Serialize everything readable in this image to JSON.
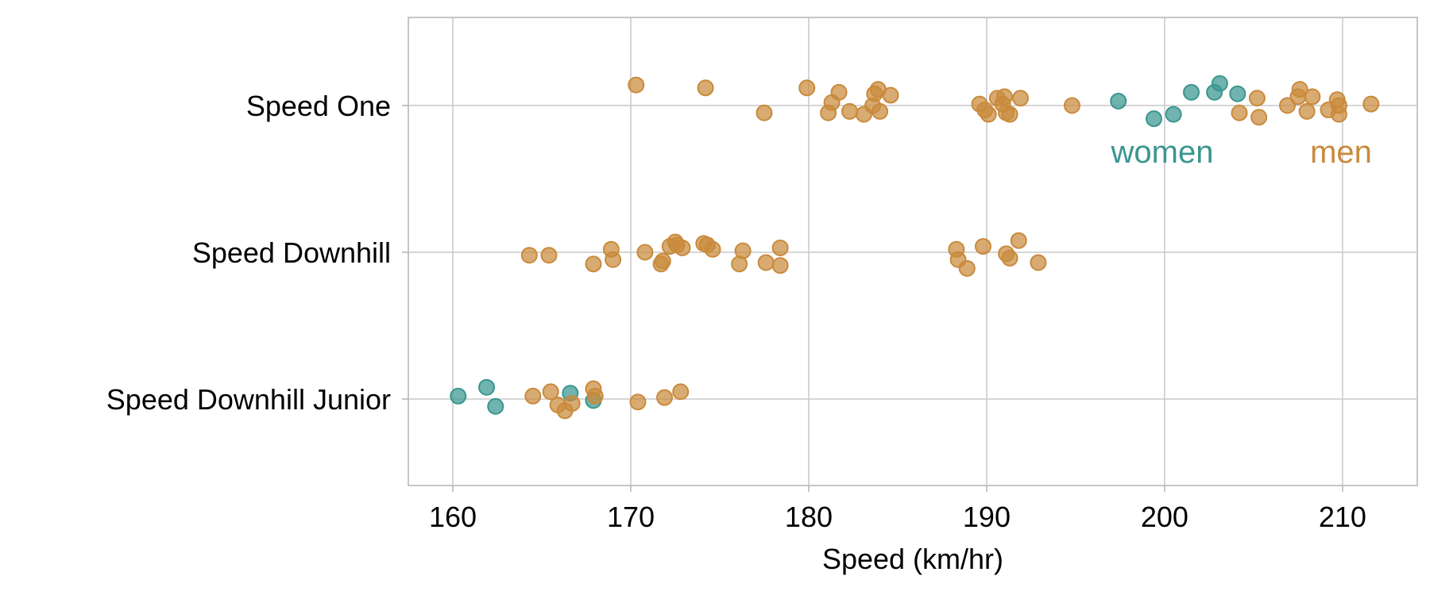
{
  "chart_data": {
    "type": "scatter",
    "xlabel": "Speed (km/hr)",
    "xlim": [
      157.5,
      214.2
    ],
    "xticks": [
      160,
      170,
      180,
      190,
      200,
      210
    ],
    "categories": [
      "Speed One",
      "Speed Downhill",
      "Speed Downhill Junior"
    ],
    "grid": true,
    "legend_placement": "inline-right",
    "series": [
      {
        "name": "women",
        "color": "#3a968f",
        "points": [
          {
            "category": "Speed One",
            "x": 197.4,
            "jitter": 0.03
          },
          {
            "category": "Speed One",
            "x": 199.4,
            "jitter": -0.09
          },
          {
            "category": "Speed One",
            "x": 200.5,
            "jitter": -0.06
          },
          {
            "category": "Speed One",
            "x": 201.5,
            "jitter": 0.09
          },
          {
            "category": "Speed One",
            "x": 202.8,
            "jitter": 0.09
          },
          {
            "category": "Speed One",
            "x": 203.1,
            "jitter": 0.15
          },
          {
            "category": "Speed One",
            "x": 204.1,
            "jitter": 0.08
          },
          {
            "category": "Speed Downhill Junior",
            "x": 160.3,
            "jitter": 0.02
          },
          {
            "category": "Speed Downhill Junior",
            "x": 161.9,
            "jitter": 0.08
          },
          {
            "category": "Speed Downhill Junior",
            "x": 162.4,
            "jitter": -0.05
          },
          {
            "category": "Speed Downhill Junior",
            "x": 166.6,
            "jitter": 0.04
          },
          {
            "category": "Speed Downhill Junior",
            "x": 167.9,
            "jitter": -0.01
          }
        ]
      },
      {
        "name": "men",
        "color": "#c98a3c",
        "points": [
          {
            "category": "Speed One",
            "x": 170.3,
            "jitter": 0.14
          },
          {
            "category": "Speed One",
            "x": 174.2,
            "jitter": 0.12
          },
          {
            "category": "Speed One",
            "x": 177.5,
            "jitter": -0.05
          },
          {
            "category": "Speed One",
            "x": 179.9,
            "jitter": 0.12
          },
          {
            "category": "Speed One",
            "x": 181.1,
            "jitter": -0.05
          },
          {
            "category": "Speed One",
            "x": 181.3,
            "jitter": 0.02
          },
          {
            "category": "Speed One",
            "x": 181.7,
            "jitter": 0.09
          },
          {
            "category": "Speed One",
            "x": 182.3,
            "jitter": -0.04
          },
          {
            "category": "Speed One",
            "x": 183.1,
            "jitter": -0.06
          },
          {
            "category": "Speed One",
            "x": 183.6,
            "jitter": 0.0
          },
          {
            "category": "Speed One",
            "x": 183.7,
            "jitter": 0.08
          },
          {
            "category": "Speed One",
            "x": 183.9,
            "jitter": 0.11
          },
          {
            "category": "Speed One",
            "x": 184.0,
            "jitter": -0.04
          },
          {
            "category": "Speed One",
            "x": 184.6,
            "jitter": 0.07
          },
          {
            "category": "Speed One",
            "x": 189.6,
            "jitter": 0.01
          },
          {
            "category": "Speed One",
            "x": 189.9,
            "jitter": -0.03
          },
          {
            "category": "Speed One",
            "x": 190.1,
            "jitter": -0.06
          },
          {
            "category": "Speed One",
            "x": 190.6,
            "jitter": 0.05
          },
          {
            "category": "Speed One",
            "x": 190.9,
            "jitter": 0.01
          },
          {
            "category": "Speed One",
            "x": 191.0,
            "jitter": 0.06
          },
          {
            "category": "Speed One",
            "x": 191.1,
            "jitter": -0.05
          },
          {
            "category": "Speed One",
            "x": 191.3,
            "jitter": -0.06
          },
          {
            "category": "Speed One",
            "x": 191.9,
            "jitter": 0.05
          },
          {
            "category": "Speed One",
            "x": 194.8,
            "jitter": 0.0
          },
          {
            "category": "Speed One",
            "x": 204.2,
            "jitter": -0.05
          },
          {
            "category": "Speed One",
            "x": 205.2,
            "jitter": 0.05
          },
          {
            "category": "Speed One",
            "x": 205.3,
            "jitter": -0.08
          },
          {
            "category": "Speed One",
            "x": 206.9,
            "jitter": 0.0
          },
          {
            "category": "Speed One",
            "x": 207.5,
            "jitter": 0.06
          },
          {
            "category": "Speed One",
            "x": 207.6,
            "jitter": 0.11
          },
          {
            "category": "Speed One",
            "x": 208.0,
            "jitter": -0.04
          },
          {
            "category": "Speed One",
            "x": 208.3,
            "jitter": 0.06
          },
          {
            "category": "Speed One",
            "x": 209.2,
            "jitter": -0.03
          },
          {
            "category": "Speed One",
            "x": 209.7,
            "jitter": 0.04
          },
          {
            "category": "Speed One",
            "x": 209.8,
            "jitter": -0.06
          },
          {
            "category": "Speed One",
            "x": 209.8,
            "jitter": 0.0
          },
          {
            "category": "Speed One",
            "x": 211.6,
            "jitter": 0.01
          },
          {
            "category": "Speed Downhill",
            "x": 164.3,
            "jitter": -0.02
          },
          {
            "category": "Speed Downhill",
            "x": 165.4,
            "jitter": -0.02
          },
          {
            "category": "Speed Downhill",
            "x": 167.9,
            "jitter": -0.08
          },
          {
            "category": "Speed Downhill",
            "x": 168.9,
            "jitter": 0.02
          },
          {
            "category": "Speed Downhill",
            "x": 169.0,
            "jitter": -0.05
          },
          {
            "category": "Speed Downhill",
            "x": 170.8,
            "jitter": 0.0
          },
          {
            "category": "Speed Downhill",
            "x": 171.7,
            "jitter": -0.08
          },
          {
            "category": "Speed Downhill",
            "x": 171.8,
            "jitter": -0.06
          },
          {
            "category": "Speed Downhill",
            "x": 172.2,
            "jitter": 0.04
          },
          {
            "category": "Speed Downhill",
            "x": 172.5,
            "jitter": 0.07
          },
          {
            "category": "Speed Downhill",
            "x": 172.6,
            "jitter": 0.05
          },
          {
            "category": "Speed Downhill",
            "x": 172.9,
            "jitter": 0.03
          },
          {
            "category": "Speed Downhill",
            "x": 174.1,
            "jitter": 0.06
          },
          {
            "category": "Speed Downhill",
            "x": 174.3,
            "jitter": 0.05
          },
          {
            "category": "Speed Downhill",
            "x": 174.6,
            "jitter": 0.02
          },
          {
            "category": "Speed Downhill",
            "x": 176.1,
            "jitter": -0.08
          },
          {
            "category": "Speed Downhill",
            "x": 176.3,
            "jitter": 0.01
          },
          {
            "category": "Speed Downhill",
            "x": 177.6,
            "jitter": -0.07
          },
          {
            "category": "Speed Downhill",
            "x": 178.4,
            "jitter": 0.03
          },
          {
            "category": "Speed Downhill",
            "x": 178.4,
            "jitter": -0.09
          },
          {
            "category": "Speed Downhill",
            "x": 188.3,
            "jitter": 0.02
          },
          {
            "category": "Speed Downhill",
            "x": 188.4,
            "jitter": -0.05
          },
          {
            "category": "Speed Downhill",
            "x": 188.9,
            "jitter": -0.11
          },
          {
            "category": "Speed Downhill",
            "x": 189.8,
            "jitter": 0.04
          },
          {
            "category": "Speed Downhill",
            "x": 191.1,
            "jitter": -0.01
          },
          {
            "category": "Speed Downhill",
            "x": 191.3,
            "jitter": -0.04
          },
          {
            "category": "Speed Downhill",
            "x": 191.8,
            "jitter": 0.08
          },
          {
            "category": "Speed Downhill",
            "x": 192.9,
            "jitter": -0.07
          },
          {
            "category": "Speed Downhill Junior",
            "x": 164.5,
            "jitter": 0.02
          },
          {
            "category": "Speed Downhill Junior",
            "x": 165.5,
            "jitter": 0.05
          },
          {
            "category": "Speed Downhill Junior",
            "x": 165.9,
            "jitter": -0.04
          },
          {
            "category": "Speed Downhill Junior",
            "x": 166.3,
            "jitter": -0.08
          },
          {
            "category": "Speed Downhill Junior",
            "x": 166.7,
            "jitter": -0.03
          },
          {
            "category": "Speed Downhill Junior",
            "x": 167.9,
            "jitter": 0.07
          },
          {
            "category": "Speed Downhill Junior",
            "x": 168.0,
            "jitter": 0.02
          },
          {
            "category": "Speed Downhill Junior",
            "x": 170.4,
            "jitter": -0.02
          },
          {
            "category": "Speed Downhill Junior",
            "x": 171.9,
            "jitter": 0.01
          },
          {
            "category": "Speed Downhill Junior",
            "x": 172.8,
            "jitter": 0.05
          }
        ]
      }
    ],
    "legend": [
      {
        "label": "women",
        "color": "#3a968f"
      },
      {
        "label": "men",
        "color": "#c98a3c"
      }
    ]
  }
}
